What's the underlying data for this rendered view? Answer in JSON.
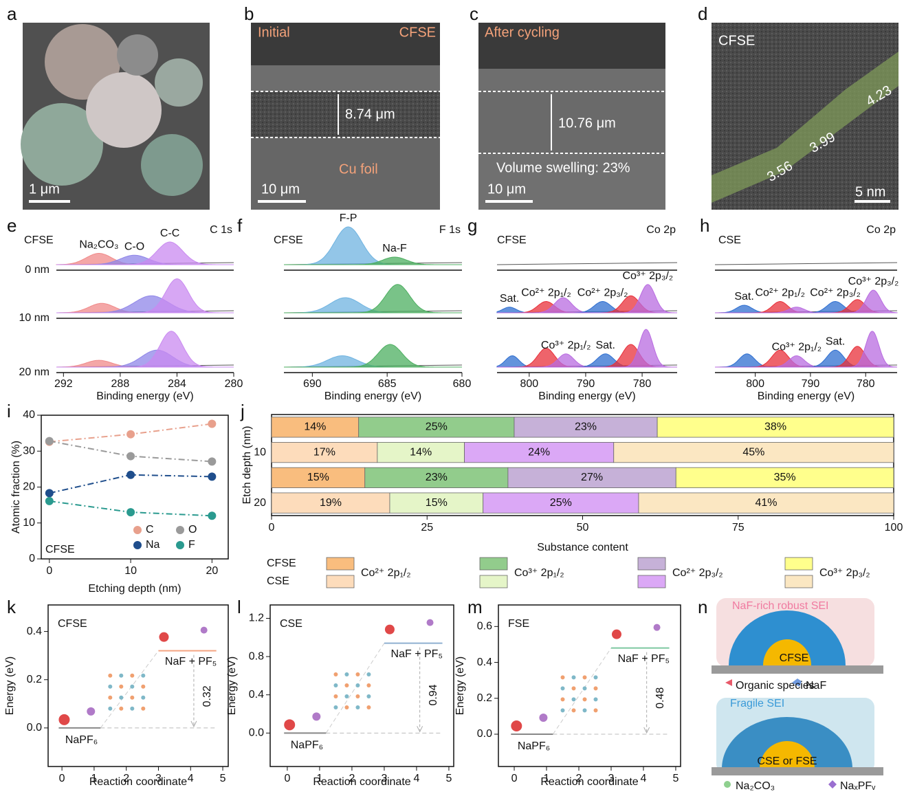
{
  "images": [
    {
      "letter": "a",
      "scale_bar": "1 μm"
    },
    {
      "letter": "b",
      "labels": [
        "Initial",
        "CFSE",
        "8.74 μm",
        "Cu foil"
      ],
      "scale_bar": "10 μm"
    },
    {
      "letter": "c",
      "labels": [
        "After cycling",
        "10.76 μm",
        "Volume swelling: 23%"
      ],
      "scale_bar": "10 μm"
    },
    {
      "letter": "d",
      "labels": [
        "CFSE",
        "4.23",
        "3.99",
        "3.56"
      ],
      "scale_bar": "5 nm"
    }
  ],
  "chart_data": [
    {
      "type": "xps",
      "letter": "e",
      "sample": "CFSE",
      "title": "C 1s",
      "xlabel": "Binding energy (eV)",
      "xlim": [
        292.5,
        280
      ],
      "xticks": [
        292,
        288,
        284,
        280
      ],
      "spectra": [
        {
          "label": "0 nm",
          "peaks": [
            {
              "center": 289.5,
              "height": 0.3,
              "width": 0.9,
              "color": "#f08a8a",
              "label": "Na₂CO₃"
            },
            {
              "center": 287,
              "height": 0.25,
              "width": 1.0,
              "color": "#8f86e8",
              "label": "C-O"
            },
            {
              "center": 284.5,
              "height": 0.6,
              "width": 0.9,
              "color": "#c98af0",
              "label": "C-C"
            }
          ]
        },
        {
          "label": "10 nm",
          "peaks": [
            {
              "center": 289.3,
              "height": 0.25,
              "width": 0.9,
              "color": "#f08a8a"
            },
            {
              "center": 285.8,
              "height": 0.45,
              "width": 1.2,
              "color": "#8f86e8"
            },
            {
              "center": 284,
              "height": 0.9,
              "width": 0.8,
              "color": "#c98af0"
            }
          ]
        },
        {
          "label": "20 nm",
          "peaks": [
            {
              "center": 289.5,
              "height": 0.18,
              "width": 0.9,
              "color": "#f08a8a"
            },
            {
              "center": 285.4,
              "height": 0.45,
              "width": 1.1,
              "color": "#8f86e8"
            },
            {
              "center": 284.4,
              "height": 0.95,
              "width": 0.8,
              "color": "#c98af0"
            }
          ]
        }
      ]
    },
    {
      "type": "xps",
      "letter": "f",
      "sample": "CFSE",
      "title": "F 1s",
      "xlabel": "Binding energy (eV)",
      "xlim": [
        691.9,
        680
      ],
      "xticks": [
        690,
        685,
        680
      ],
      "spectra": [
        {
          "peaks": [
            {
              "center": 687.6,
              "height": 1.0,
              "width": 0.9,
              "color": "#6fb3e0",
              "label": "F-P"
            },
            {
              "center": 684.5,
              "height": 0.2,
              "width": 0.8,
              "color": "#4caf60",
              "label": "Na-F"
            }
          ]
        },
        {
          "peaks": [
            {
              "center": 687.8,
              "height": 0.4,
              "width": 1.0,
              "color": "#6fb3e0"
            },
            {
              "center": 684.3,
              "height": 0.75,
              "width": 0.8,
              "color": "#4caf60"
            }
          ]
        },
        {
          "peaks": [
            {
              "center": 688,
              "height": 0.3,
              "width": 1.0,
              "color": "#6fb3e0"
            },
            {
              "center": 684.8,
              "height": 0.6,
              "width": 0.8,
              "color": "#4caf60"
            }
          ]
        }
      ]
    },
    {
      "type": "xps",
      "letter": "g",
      "sample": "CFSE",
      "title": "Co 2p",
      "xlabel": "Binding energy (eV)",
      "xlim": [
        805.7,
        773.8
      ],
      "xticks": [
        800,
        790,
        780
      ],
      "spectra": [
        {
          "peaks": []
        },
        {
          "peaks": [
            {
              "center": 803.5,
              "height": 0.15,
              "width": 1.2,
              "color": "#2f6fd0",
              "label": "Sat."
            },
            {
              "center": 797,
              "height": 0.3,
              "width": 1.5,
              "color": "#e8303a",
              "label": "Co²⁺ 2p₁/₂"
            },
            {
              "center": 794,
              "height": 0.4,
              "width": 1.5,
              "color": "#b86be0"
            },
            {
              "center": 787,
              "height": 0.3,
              "width": 1.5,
              "color": "#2f6fd0",
              "label": "Co²⁺ 2p₃/₂"
            },
            {
              "center": 782,
              "height": 0.45,
              "width": 1.5,
              "color": "#e8303a"
            },
            {
              "center": 779,
              "height": 0.75,
              "width": 1.3,
              "color": "#b86be0",
              "label": "Co³⁺ 2p₃/₂"
            }
          ]
        },
        {
          "peaks": [
            {
              "center": 803,
              "height": 0.3,
              "width": 1.2,
              "color": "#2f6fd0"
            },
            {
              "center": 797,
              "height": 0.5,
              "width": 1.5,
              "color": "#e8303a"
            },
            {
              "center": 793.5,
              "height": 0.35,
              "width": 1.4,
              "color": "#b86be0",
              "label": "Co³⁺ 2p₁/₂"
            },
            {
              "center": 786.5,
              "height": 0.35,
              "width": 1.5,
              "color": "#2f6fd0",
              "label": "Sat."
            },
            {
              "center": 782,
              "height": 0.6,
              "width": 1.5,
              "color": "#e8303a"
            },
            {
              "center": 779.3,
              "height": 1.0,
              "width": 1.2,
              "color": "#b86be0"
            }
          ]
        }
      ]
    },
    {
      "type": "xps",
      "letter": "h",
      "sample": "CSE",
      "title": "Co 2p",
      "xlabel": "Binding energy (eV)",
      "xlim": [
        807.3,
        774.3
      ],
      "xticks": [
        800,
        790,
        780
      ],
      "spectra": [
        {
          "peaks": []
        },
        {
          "peaks": [
            {
              "center": 802,
              "height": 0.2,
              "width": 1.4,
              "color": "#2f6fd0",
              "label": "Sat."
            },
            {
              "center": 795.5,
              "height": 0.3,
              "width": 1.4,
              "color": "#e8303a",
              "label": "Co²⁺ 2p₁/₂"
            },
            {
              "center": 792.5,
              "height": 0.15,
              "width": 1.4,
              "color": "#b86be0"
            },
            {
              "center": 785.5,
              "height": 0.3,
              "width": 1.5,
              "color": "#2f6fd0",
              "label": "Co²⁺ 2p₃/₂"
            },
            {
              "center": 781.5,
              "height": 0.35,
              "width": 1.4,
              "color": "#e8303a"
            },
            {
              "center": 778.6,
              "height": 0.6,
              "width": 1.3,
              "color": "#b86be0",
              "label": "Co³⁺ 2p₃/₂"
            }
          ]
        },
        {
          "peaks": [
            {
              "center": 801.5,
              "height": 0.35,
              "width": 1.4,
              "color": "#2f6fd0"
            },
            {
              "center": 795.5,
              "height": 0.45,
              "width": 1.5,
              "color": "#e8303a"
            },
            {
              "center": 792.5,
              "height": 0.3,
              "width": 1.4,
              "color": "#b86be0",
              "label": "Co³⁺ 2p₁/₂"
            },
            {
              "center": 785.5,
              "height": 0.45,
              "width": 1.5,
              "color": "#2f6fd0",
              "label": "Sat."
            },
            {
              "center": 781.5,
              "height": 0.55,
              "width": 1.4,
              "color": "#e8303a"
            },
            {
              "center": 778.8,
              "height": 0.95,
              "width": 1.2,
              "color": "#b86be0"
            }
          ]
        }
      ]
    },
    {
      "type": "line",
      "letter": "i",
      "annotation": "CFSE",
      "xlabel": "Etching depth (nm)",
      "ylabel": "Atomic fraction (%)",
      "x": [
        0,
        10,
        20
      ],
      "xlim": [
        -1,
        22
      ],
      "xticks": [
        0,
        10,
        20
      ],
      "ylim": [
        0,
        40
      ],
      "yticks": [
        0,
        10,
        20,
        30,
        40
      ],
      "series": [
        {
          "name": "C",
          "color": "#e8a08c",
          "values": [
            32.6,
            34.7,
            37.6
          ]
        },
        {
          "name": "O",
          "color": "#9a9a9a",
          "values": [
            32.8,
            28.6,
            27.1
          ]
        },
        {
          "name": "Na",
          "color": "#1f4e8c",
          "values": [
            18.3,
            23.4,
            22.9
          ]
        },
        {
          "name": "F",
          "color": "#2a9a8f",
          "values": [
            16.1,
            13.0,
            12.0
          ]
        }
      ]
    },
    {
      "type": "stacked_barh",
      "letter": "j",
      "xlabel": "Substance content",
      "ylabel": "Etch depth (nm)",
      "categories": [
        null,
        "10",
        null,
        "20"
      ],
      "xlim": [
        0,
        100
      ],
      "xticks": [
        0,
        25,
        50,
        75,
        100
      ],
      "legend_rows": [
        "CFSE",
        "CSE"
      ],
      "series": [
        {
          "name": "Co²⁺ 2p₁/₂",
          "colors": [
            "#f9bd7e",
            "#fddcbb",
            "#f9bd7e",
            "#fddcbb"
          ],
          "values": [
            14,
            17,
            15,
            19
          ],
          "value_labels": [
            "14%",
            "17%",
            "15%",
            "19%"
          ]
        },
        {
          "name": "Co³⁺ 2p₁/₂",
          "colors": [
            "#92cc8c",
            "#e5f5c8",
            "#92cc8c",
            "#e5f5c8"
          ],
          "values": [
            25,
            14,
            23,
            15
          ],
          "value_labels": [
            "25%",
            "14%",
            "23%",
            "15%"
          ]
        },
        {
          "name": "Co²⁺ 2p₃/₂",
          "colors": [
            "#c6b1d8",
            "#dba8f6",
            "#c6b1d8",
            "#dba8f6"
          ],
          "values": [
            23,
            24,
            27,
            25
          ],
          "value_labels": [
            "23%",
            "24%",
            "27%",
            "25%"
          ]
        },
        {
          "name": "Co³⁺ 2p₃/₂",
          "colors": [
            "#ffff8c",
            "#fbe7c2",
            "#ffff8c",
            "#fbe7c2"
          ],
          "values": [
            38,
            45,
            35,
            41
          ],
          "value_labels": [
            "38%",
            "45%",
            "35%",
            "41%"
          ]
        }
      ]
    },
    {
      "type": "energy",
      "letter": "k",
      "annotation": "CFSE",
      "xlabel": "Reaction coordinate",
      "ylabel": "Energy (eV)",
      "xlim": [
        -0.43,
        5.17
      ],
      "xticks": [
        0,
        1,
        2,
        3,
        4,
        5
      ],
      "ylim": [
        -0.16,
        0.51
      ],
      "yticks": [
        {
          "value": 0,
          "label": "0.0"
        },
        0.2,
        0.4
      ],
      "categories": [
        "NaPF₆",
        "NaF + PF₅"
      ],
      "x": [
        0.5,
        3.9
      ],
      "values": [
        0,
        0.32
      ],
      "color": "#f4a582"
    },
    {
      "type": "energy",
      "letter": "l",
      "annotation": "CSE",
      "xlabel": "Reaction coordinate",
      "ylabel": "Energy (eV)",
      "xlim": [
        -0.53,
        5.15
      ],
      "xticks": [
        0,
        1,
        2,
        3,
        4,
        5
      ],
      "ylim": [
        -0.35,
        1.34
      ],
      "yticks": [
        {
          "value": 0,
          "label": "0.0"
        },
        0.4,
        0.8,
        1.2
      ],
      "categories": [
        "NaPF₆",
        "NaF + PF₅"
      ],
      "x": [
        0.5,
        3.9
      ],
      "values": [
        0,
        0.94
      ],
      "color": "#8fb0d0"
    },
    {
      "type": "energy",
      "letter": "m",
      "annotation": "FSE",
      "xlabel": "Reaction coordinate",
      "ylabel": "Energy (eV)",
      "xlim": [
        -0.49,
        5.15
      ],
      "xticks": [
        0,
        1,
        2,
        3,
        4,
        5
      ],
      "ylim": [
        -0.18,
        0.72
      ],
      "yticks": [
        {
          "value": 0,
          "label": "0.0"
        },
        0.2,
        0.4,
        0.6
      ],
      "categories": [
        "NaPF₆",
        "NaF + PF₅"
      ],
      "x": [
        0.5,
        3.9
      ],
      "values": [
        0,
        0.48
      ],
      "color": "#7cc7a0"
    }
  ],
  "schematic": {
    "letter": "n",
    "labels": [
      "NaF-rich robust SEI",
      "CFSE",
      "Organic species",
      "NaF",
      "Fragile SEI",
      "CSE or FSE",
      "Na₂CO₃",
      "NaₓPFᵥ"
    ]
  }
}
